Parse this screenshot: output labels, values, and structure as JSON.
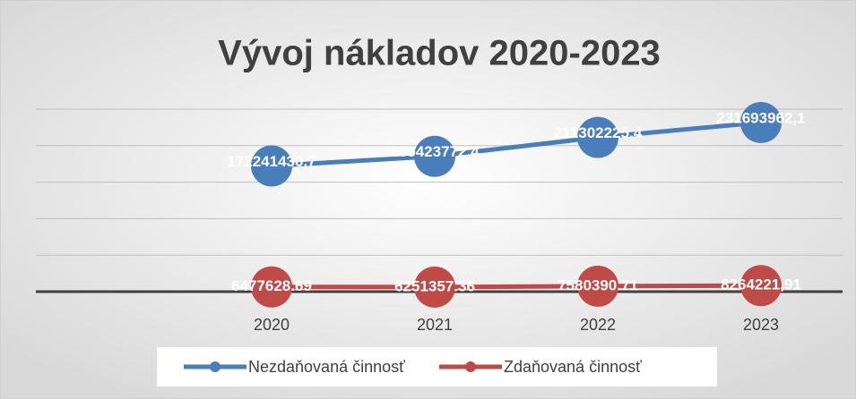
{
  "chart_data": {
    "type": "line",
    "title": "Vývoj nákladov 2020-2023",
    "categories": [
      "2020",
      "2021",
      "2022",
      "2023"
    ],
    "series": [
      {
        "name": "Nezdaňovaná činnosť",
        "color": "#4a7ebb",
        "values": [
          172241430.7,
          185423772.4,
          211302225.4,
          231693962.1
        ],
        "value_labels": [
          "172241430,7",
          "185423772,4",
          "211302225,4",
          "231693962,1"
        ]
      },
      {
        "name": "Zdaňovaná činnosť",
        "color": "#be4b48",
        "values": [
          6477628.69,
          6251357.36,
          7580390.71,
          8264221.91
        ],
        "value_labels": [
          "6477628.69",
          "6251357.36",
          "7580390.71",
          "8264221,91"
        ]
      }
    ],
    "ylim": [
      0,
      250000000
    ],
    "yticks": [
      0,
      50000000,
      100000000,
      150000000,
      200000000,
      250000000
    ],
    "grid": true,
    "legend": "bottom"
  }
}
